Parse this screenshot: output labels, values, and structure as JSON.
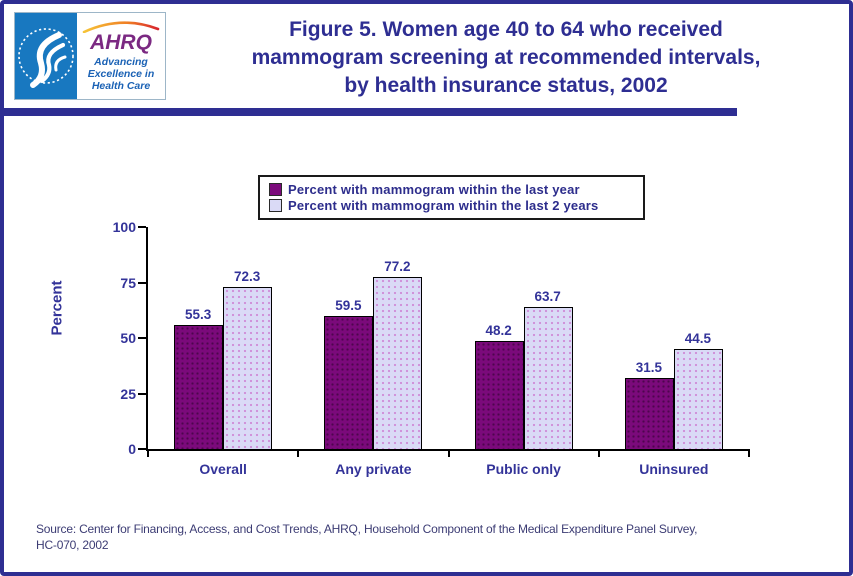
{
  "header": {
    "logo": {
      "acronym": "AHRQ",
      "tagline": "Advancing Excellence in Health Care"
    },
    "title_lines": [
      "Figure 5. Women age 40 to 64 who received",
      "mammogram screening at recommended intervals,",
      "by health insurance status, 2002"
    ]
  },
  "chart_data": {
    "type": "bar",
    "title": "Figure 5. Women age 40 to 64 who received mammogram screening at recommended intervals, by health insurance status, 2002",
    "xlabel": "",
    "ylabel": "Percent",
    "ylim": [
      0,
      100
    ],
    "yticks": [
      0,
      25,
      50,
      75,
      100
    ],
    "grid": false,
    "legend_position": "top-center",
    "categories": [
      "Overall",
      "Any private",
      "Public only",
      "Uninsured"
    ],
    "series": [
      {
        "name": "Percent with mammogram within the last year",
        "color": "#7b0a7b",
        "values": [
          55.3,
          59.5,
          48.2,
          31.5
        ]
      },
      {
        "name": "Percent with mammogram within the last 2 years",
        "color": "#dadaf6",
        "values": [
          72.3,
          77.2,
          63.7,
          44.5
        ]
      }
    ]
  },
  "footer": {
    "source_line1": "Source: Center for Financing, Access, and Cost Trends, AHRQ, Household Component of the Medical Expenditure Panel Survey,",
    "source_line2": "HC-070, 2002"
  },
  "colors": {
    "accent_navy": "#2e2e92",
    "label_navy": "#333399",
    "series1": "#7b0a7b",
    "series2": "#dadaf6",
    "hhs_blue": "#1878c0",
    "ahrq_purple": "#7b2982"
  }
}
